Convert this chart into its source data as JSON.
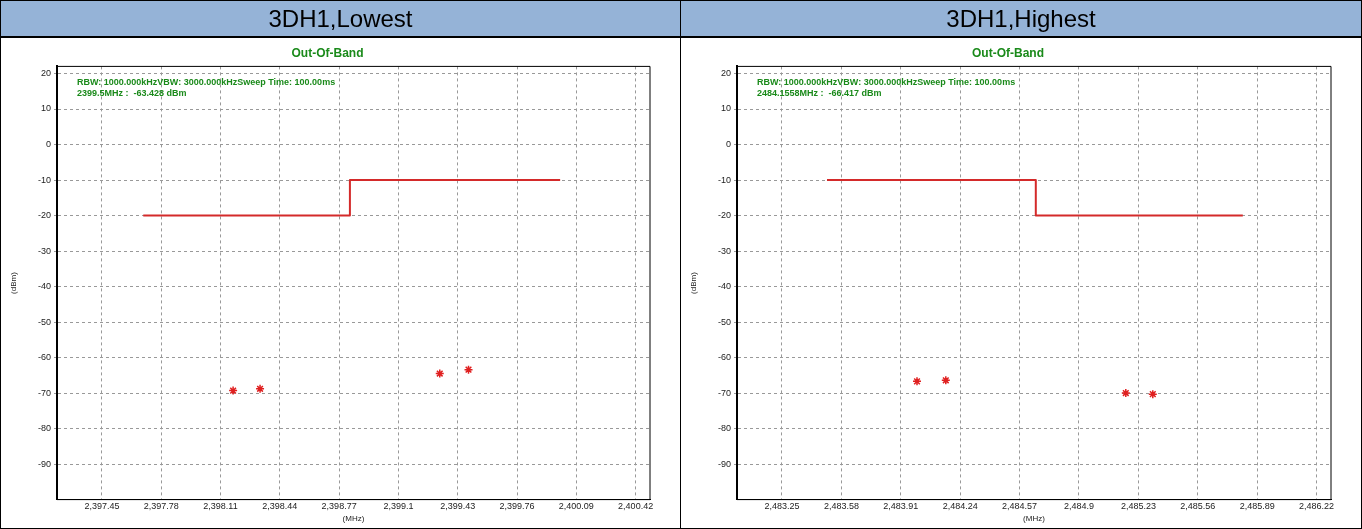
{
  "chart_data": [
    {
      "type": "scatter",
      "title": "3DH1,Lowest",
      "subtitle": "Out-Of-Band",
      "xlabel": "(MHz)",
      "ylabel": "(dBm)",
      "annotations": [
        "RBW: 1000.000kHzVBW: 3000.000kHzSweep Time: 100.00ms",
        "2399.5MHz :  -63.428 dBm"
      ],
      "xlim": [
        2397.2,
        2400.5
      ],
      "xticks": [
        {
          "value": 2397.45,
          "label": "2,397.45"
        },
        {
          "value": 2397.78,
          "label": "2,397.78"
        },
        {
          "value": 2398.11,
          "label": "2,398.11"
        },
        {
          "value": 2398.44,
          "label": "2,398.44"
        },
        {
          "value": 2398.77,
          "label": "2,398.77"
        },
        {
          "value": 2399.1,
          "label": "2,399.1"
        },
        {
          "value": 2399.43,
          "label": "2,399.43"
        },
        {
          "value": 2399.76,
          "label": "2,399.76"
        },
        {
          "value": 2400.09,
          "label": "2,400.09"
        },
        {
          "value": 2400.42,
          "label": "2,400.42"
        }
      ],
      "ylim": [
        -100,
        22
      ],
      "yticks": [
        -90,
        -80,
        -70,
        -60,
        -50,
        -40,
        -30,
        -20,
        -10,
        0,
        10,
        20
      ],
      "grid": true,
      "legend": false,
      "series": [
        {
          "type": "step",
          "color": "#d42a2a",
          "x": [
            2397.68,
            2398.83,
            2400.0
          ],
          "values": [
            -20,
            -10,
            -10
          ]
        },
        {
          "type": "scatter",
          "color": "#e02020",
          "marker": "cross",
          "x": [
            2398.18,
            2398.33,
            2399.33,
            2399.49
          ],
          "values": [
            -69.3,
            -68.8,
            -64.5,
            -63.4
          ]
        }
      ]
    },
    {
      "type": "scatter",
      "title": "3DH1,Highest",
      "subtitle": "Out-Of-Band",
      "xlabel": "(MHz)",
      "ylabel": "(dBm)",
      "annotations": [
        "RBW: 1000.000kHzVBW: 3000.000kHzSweep Time: 100.00ms",
        "2484.1558MHz :  -66.417 dBm"
      ],
      "xlim": [
        2483.0,
        2486.3
      ],
      "xticks": [
        {
          "value": 2483.25,
          "label": "2,483.25"
        },
        {
          "value": 2483.58,
          "label": "2,483.58"
        },
        {
          "value": 2483.91,
          "label": "2,483.91"
        },
        {
          "value": 2484.24,
          "label": "2,484.24"
        },
        {
          "value": 2484.57,
          "label": "2,484.57"
        },
        {
          "value": 2484.9,
          "label": "2,484.9"
        },
        {
          "value": 2485.23,
          "label": "2,485.23"
        },
        {
          "value": 2485.56,
          "label": "2,485.56"
        },
        {
          "value": 2485.89,
          "label": "2,485.89"
        },
        {
          "value": 2486.22,
          "label": "2,486.22"
        }
      ],
      "ylim": [
        -100,
        22
      ],
      "yticks": [
        -90,
        -80,
        -70,
        -60,
        -50,
        -40,
        -30,
        -20,
        -10,
        0,
        10,
        20
      ],
      "grid": true,
      "legend": false,
      "series": [
        {
          "type": "step",
          "color": "#d42a2a",
          "x": [
            2483.5,
            2484.66,
            2485.81
          ],
          "values": [
            -10,
            -20,
            -20
          ]
        },
        {
          "type": "scatter",
          "color": "#e02020",
          "marker": "cross",
          "x": [
            2484.0,
            2484.16,
            2485.16,
            2485.31
          ],
          "values": [
            -66.7,
            -66.4,
            -70.0,
            -70.3
          ]
        }
      ]
    }
  ]
}
